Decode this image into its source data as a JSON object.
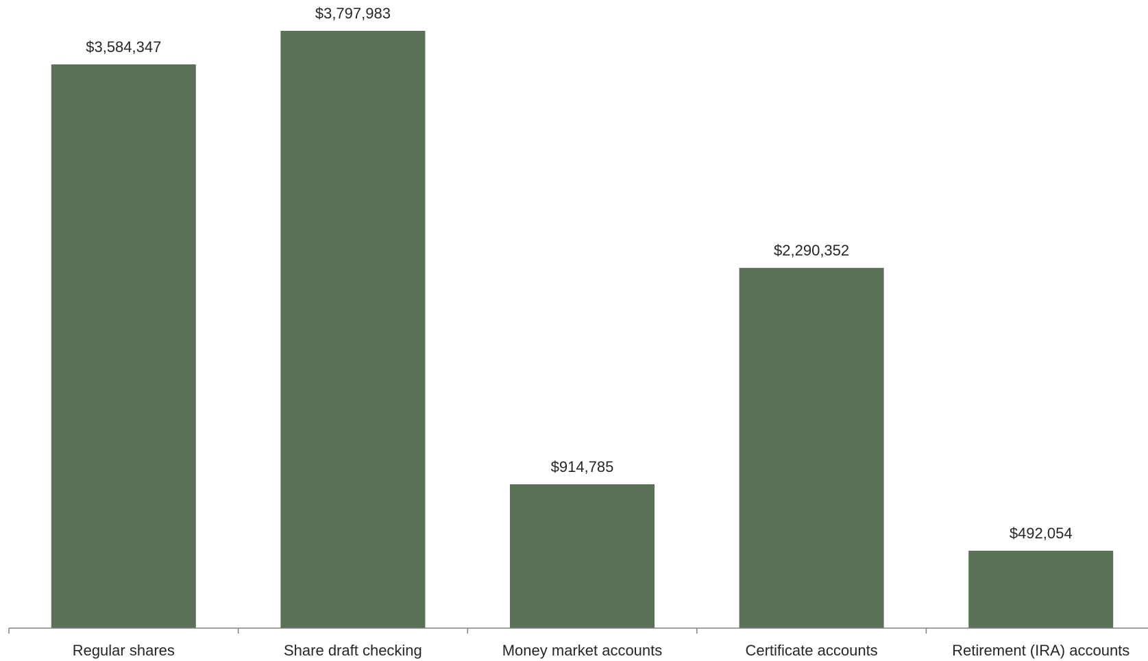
{
  "chart_data": {
    "type": "bar",
    "title": "",
    "xlabel": "",
    "ylabel": "",
    "categories": [
      "Regular shares",
      "Share draft checking",
      "Money market accounts",
      "Certificate accounts",
      "Retirement (IRA) accounts"
    ],
    "values": [
      3584347,
      3797983,
      914785,
      2290352,
      492054
    ],
    "data_labels": [
      "$3,584,347",
      "$3,797,983",
      "$914,785",
      "$2,290,352",
      "$492,054"
    ],
    "ylim": [
      0,
      3797983
    ],
    "grid": false,
    "legend": "none",
    "colors": {
      "bar": "#5a7158",
      "axis": "#808080"
    }
  }
}
